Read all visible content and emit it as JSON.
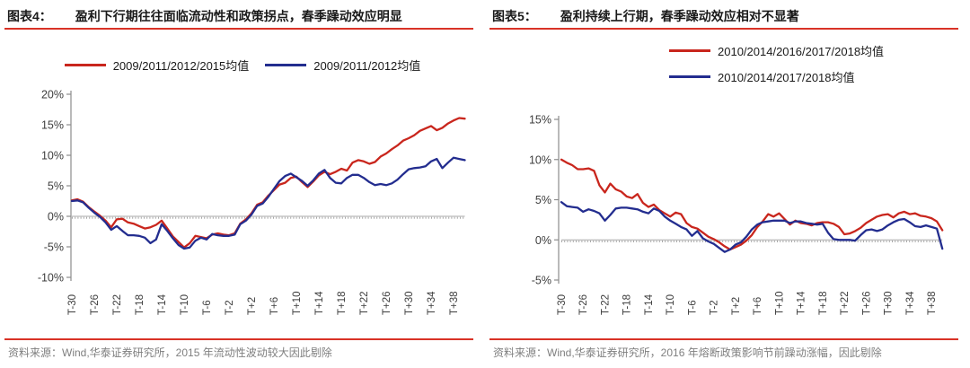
{
  "panels": [
    {
      "figure_label": "图表4：",
      "title": "盈利下行期往往面临流动性和政策拐点，春季躁动效应明显",
      "source_note": "资料来源：Wind,华泰证券研究所，2015 年流动性波动较大因此剔除"
    },
    {
      "figure_label": "图表5：",
      "title": "盈利持续上行期，春季躁动效应相对不显著",
      "source_note": "资料来源：Wind,华泰证券研究所，2016 年熔断政策影响节前躁动涨幅，因此剔除"
    }
  ],
  "colors": {
    "red_line": "#C9261D",
    "blue_line": "#232D8F",
    "rule_red": "#D93226",
    "axis_gray": "#8C8C8C",
    "zero_line": "#A8A8A8",
    "tick_text": "#3D3D3D",
    "source_text": "#7F7F7F",
    "title_text": "#1A1A1A"
  },
  "chart_data": [
    {
      "type": "line",
      "title": "盈利下行期往往面临流动性和政策拐点，春季躁动效应明显",
      "xlabel": "",
      "ylabel": "",
      "x_start": -30,
      "x_end": 40,
      "x_step": 1,
      "ylim": [
        -10,
        20
      ],
      "yticks": [
        20,
        15,
        10,
        5,
        0,
        -5,
        -10
      ],
      "ytick_suffix": "%",
      "xticks": [
        -30,
        -26,
        -22,
        -18,
        -14,
        -10,
        -6,
        -2,
        2,
        6,
        10,
        14,
        18,
        22,
        26,
        30,
        34,
        38
      ],
      "xtick_labels": [
        "T-30",
        "T-26",
        "T-22",
        "T-18",
        "T-14",
        "T-10",
        "T-6",
        "T-2",
        "T+2",
        "T+6",
        "T+10",
        "T+14",
        "T+18",
        "T+22",
        "T+26",
        "T+30",
        "T+34",
        "T+38"
      ],
      "grid": "zero-line-only",
      "legend_position": "top-inline",
      "series": [
        {
          "name": "2009/2011/2012/2015均值",
          "color_key": "red_line",
          "values": [
            2.6,
            2.8,
            2.4,
            1.5,
            0.8,
            0.1,
            -0.7,
            -1.8,
            -0.5,
            -0.4,
            -1.0,
            -1.2,
            -1.6,
            -2.0,
            -1.8,
            -1.4,
            -0.7,
            -2.0,
            -3.3,
            -4.2,
            -5.1,
            -4.4,
            -3.2,
            -3.4,
            -3.6,
            -3.0,
            -2.8,
            -3.0,
            -3.1,
            -2.8,
            -1.2,
            -0.5,
            0.5,
            1.9,
            2.3,
            3.4,
            4.3,
            5.2,
            5.5,
            6.3,
            6.5,
            5.6,
            4.8,
            5.7,
            6.7,
            7.3,
            6.9,
            7.3,
            7.8,
            7.5,
            8.8,
            9.2,
            9.0,
            8.6,
            8.9,
            9.8,
            10.3,
            11.0,
            11.6,
            12.4,
            12.8,
            13.3,
            14.0,
            14.4,
            14.8,
            14.1,
            14.5,
            15.2,
            15.7,
            16.1,
            16.0
          ]
        },
        {
          "name": "2009/2011/2012均值",
          "color_key": "blue_line",
          "values": [
            2.5,
            2.6,
            2.3,
            1.4,
            0.6,
            -0.1,
            -1.0,
            -2.2,
            -1.6,
            -2.4,
            -3.1,
            -3.1,
            -3.2,
            -3.5,
            -4.4,
            -3.8,
            -1.3,
            -2.4,
            -3.6,
            -4.7,
            -5.3,
            -5.1,
            -4.0,
            -3.5,
            -3.8,
            -2.9,
            -3.1,
            -3.2,
            -3.2,
            -3.0,
            -1.3,
            -0.7,
            0.3,
            1.7,
            2.1,
            3.2,
            4.5,
            5.8,
            6.6,
            7.0,
            6.4,
            5.8,
            5.0,
            5.9,
            7.0,
            7.6,
            6.3,
            5.5,
            5.4,
            6.3,
            6.8,
            6.8,
            6.3,
            5.6,
            5.1,
            5.3,
            5.1,
            5.4,
            6.0,
            6.9,
            7.7,
            7.9,
            8.0,
            8.2,
            9.0,
            9.4,
            7.9,
            8.8,
            9.6,
            9.4,
            9.2
          ]
        }
      ]
    },
    {
      "type": "line",
      "title": "盈利持续上行期，春季躁动效应相对不显著",
      "xlabel": "",
      "ylabel": "",
      "x_start": -30,
      "x_end": 40,
      "x_step": 1,
      "ylim": [
        -5,
        15
      ],
      "yticks": [
        15,
        10,
        5,
        0,
        -5
      ],
      "ytick_suffix": "%",
      "xticks": [
        -30,
        -26,
        -22,
        -18,
        -14,
        -10,
        -6,
        -2,
        2,
        6,
        10,
        14,
        18,
        22,
        26,
        30,
        34,
        38
      ],
      "xtick_labels": [
        "T-30",
        "T-26",
        "T-22",
        "T-18",
        "T-14",
        "T-10",
        "T-6",
        "T-2",
        "T+2",
        "T+6",
        "T+10",
        "T+14",
        "T+18",
        "T+22",
        "T+26",
        "T+30",
        "T+34",
        "T+38"
      ],
      "grid": "zero-line-only",
      "legend_position": "top-stacked",
      "series": [
        {
          "name": "2010/2014/2016/2017/2018均值",
          "color_key": "red_line",
          "values": [
            10.0,
            9.6,
            9.3,
            8.8,
            8.8,
            8.9,
            8.6,
            6.8,
            5.9,
            7.0,
            6.3,
            6.0,
            5.4,
            5.2,
            5.7,
            4.6,
            4.1,
            4.4,
            3.7,
            3.3,
            2.9,
            3.4,
            3.2,
            2.1,
            1.6,
            1.4,
            0.9,
            0.4,
            0.1,
            -0.3,
            -0.8,
            -1.2,
            -0.9,
            -0.6,
            -0.1,
            0.6,
            1.6,
            2.3,
            3.2,
            2.9,
            3.3,
            2.6,
            1.9,
            2.4,
            2.1,
            2.0,
            1.8,
            2.1,
            2.2,
            2.2,
            2.0,
            1.6,
            0.7,
            0.8,
            1.1,
            1.5,
            2.1,
            2.5,
            2.9,
            3.1,
            3.2,
            2.8,
            3.3,
            3.5,
            3.2,
            3.3,
            3.0,
            2.9,
            2.7,
            2.3,
            1.2
          ]
        },
        {
          "name": "2010/2014/2017/2018均值",
          "color_key": "blue_line",
          "values": [
            4.7,
            4.2,
            4.1,
            4.0,
            3.5,
            3.8,
            3.6,
            3.3,
            2.4,
            3.1,
            3.9,
            4.0,
            4.0,
            3.9,
            3.8,
            3.5,
            3.3,
            3.9,
            3.6,
            2.9,
            2.4,
            2.0,
            1.6,
            1.3,
            0.5,
            1.1,
            0.2,
            -0.2,
            -0.5,
            -1.0,
            -1.5,
            -1.2,
            -0.6,
            -0.3,
            0.4,
            1.3,
            1.9,
            2.2,
            2.3,
            2.4,
            2.4,
            2.4,
            2.1,
            2.3,
            2.3,
            2.1,
            2.0,
            1.9,
            2.0,
            0.9,
            0.1,
            0.0,
            0.0,
            0.0,
            -0.1,
            0.6,
            1.2,
            1.3,
            1.1,
            1.3,
            1.8,
            2.2,
            2.5,
            2.6,
            2.2,
            1.7,
            1.6,
            1.8,
            1.6,
            1.4,
            -1.1
          ]
        }
      ]
    }
  ]
}
